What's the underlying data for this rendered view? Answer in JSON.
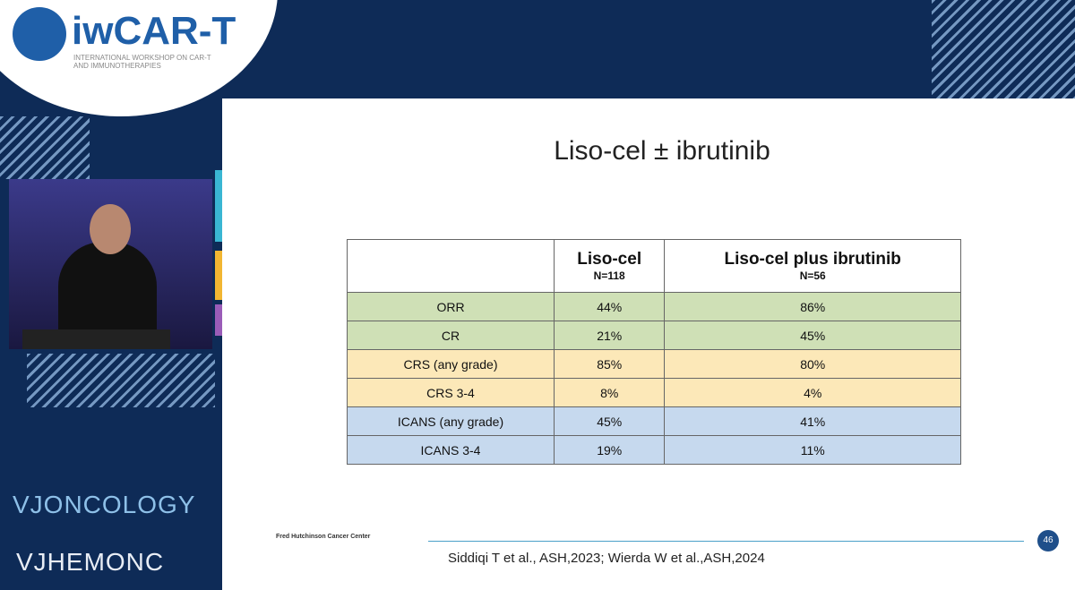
{
  "logo": {
    "title": "iwCAR-T",
    "subtitle": "INTERNATIONAL WORKSHOP ON CAR-T AND IMMUNOTHERAPIES"
  },
  "slide": {
    "title": "Liso-cel ± ibrutinib",
    "table": {
      "header": [
        {
          "name": "Liso-cel",
          "n": "N=118"
        },
        {
          "name": "Liso-cel plus ibrutinib",
          "n": "N=56"
        }
      ],
      "rows": [
        [
          "ORR",
          "44%",
          "86%"
        ],
        [
          "CR",
          "21%",
          "45%"
        ],
        [
          "CRS (any grade)",
          "85%",
          "80%"
        ],
        [
          "CRS 3-4",
          "8%",
          "4%"
        ],
        [
          "ICANS (any grade)",
          "45%",
          "41%"
        ],
        [
          "ICANS 3-4",
          "19%",
          "11%"
        ]
      ]
    },
    "institution": "Fred Hutchinson Cancer Center",
    "citation": "Siddiqi T et al., ASH,2023; Wierda W et al.,ASH,2024",
    "page": "46"
  },
  "brands": [
    "VJONCOLOGY",
    "VJHEMONC"
  ]
}
